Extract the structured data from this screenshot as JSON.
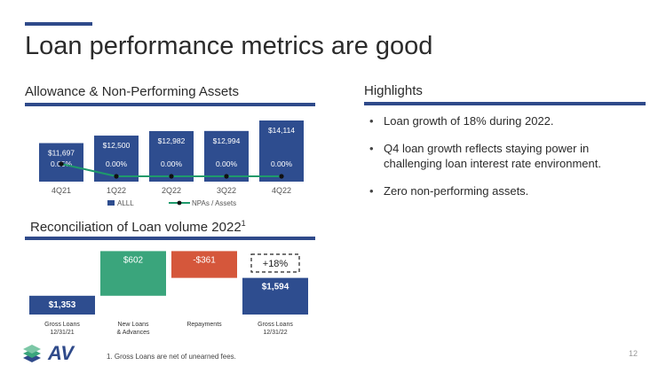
{
  "page": {
    "title": "Loan performance metrics are good",
    "page_number": "12",
    "footnote": "1.   Gross Loans are net of unearned fees."
  },
  "sections": {
    "allowance": "Allowance & Non-Performing Assets",
    "highlights": "Highlights",
    "reconciliation": "Reconciliation of Loan volume 2022",
    "reconciliation_sup": "1"
  },
  "highlights": [
    "Loan growth of 18% during 2022.",
    "Q4 loan growth reflects staying power in challenging loan interest rate environment.",
    "Zero non-performing assets."
  ],
  "logo": {
    "text": "AV",
    "icon": "layers-stack-icon"
  },
  "colors": {
    "navy": "#2f4a8a",
    "bar": "#2e4d8f",
    "green": "#3aa57c",
    "red": "#d5573b",
    "line": "#1e9a6b"
  },
  "chart_data": [
    {
      "type": "bar",
      "categories": [
        "4Q21",
        "1Q22",
        "2Q22",
        "3Q22",
        "4Q22"
      ],
      "series": [
        {
          "name": "ALLL",
          "values": [
            11697,
            12500,
            12982,
            12994,
            14114
          ],
          "labels": [
            "$11,697",
            "$12,500",
            "$12,982",
            "$12,994",
            "$14,114"
          ]
        },
        {
          "name": "NPAs / Assets",
          "type": "line",
          "values": [
            0.05,
            0.0,
            0.0,
            0.0,
            0.0
          ],
          "labels": [
            "0.05%",
            "0.00%",
            "0.00%",
            "0.00%",
            "0.00%"
          ]
        }
      ],
      "legend": "bottom",
      "grid": false
    },
    {
      "type": "bar",
      "subtype": "waterfall",
      "categories": [
        "Gross Loans 12/31/21",
        "New Loans & Advances",
        "Repayments",
        "Gross Loans 12/31/22"
      ],
      "values": [
        1353,
        602,
        -361,
        1594
      ],
      "labels": [
        "$1,353",
        "$602",
        "-$361",
        "$1,594"
      ],
      "annotation": "+18%"
    }
  ]
}
